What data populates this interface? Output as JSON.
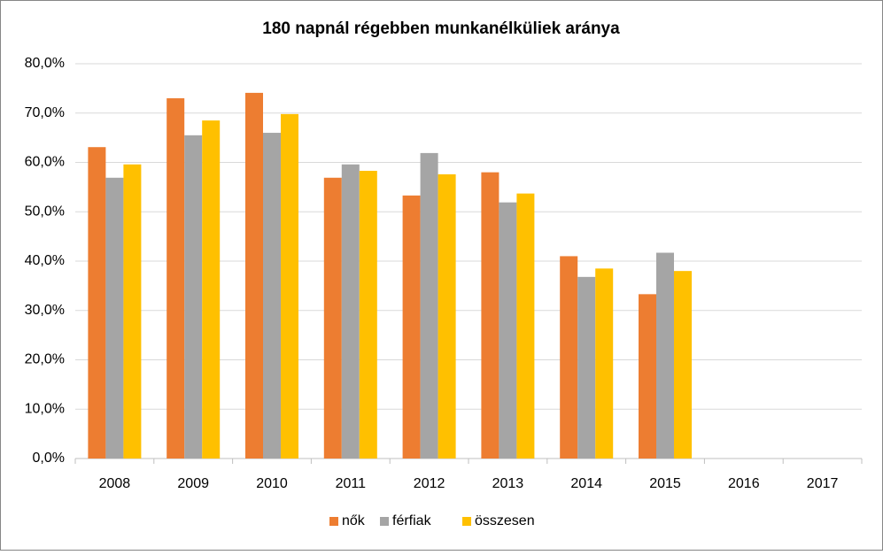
{
  "chart_data": {
    "type": "bar",
    "title": "180 napnál régebben munkanélküliek aránya",
    "categories": [
      "2008",
      "2009",
      "2010",
      "2011",
      "2012",
      "2013",
      "2014",
      "2015",
      "2016",
      "2017"
    ],
    "series": [
      {
        "name": "nők",
        "color": "#ED7D31",
        "values": [
          63.1,
          73.0,
          74.1,
          56.9,
          53.3,
          58.0,
          41.0,
          33.3,
          null,
          null
        ]
      },
      {
        "name": "férfiak",
        "color": "#A5A5A5",
        "values": [
          56.9,
          65.5,
          66.0,
          59.6,
          61.9,
          51.9,
          36.8,
          41.7,
          null,
          null
        ]
      },
      {
        "name": "összesen",
        "color": "#FFC000",
        "values": [
          59.6,
          68.5,
          69.8,
          58.3,
          57.6,
          53.7,
          38.5,
          38.0,
          null,
          null
        ]
      }
    ],
    "ylim": [
      0,
      80
    ],
    "yticks": [
      {
        "value": 0,
        "label": "0,0%"
      },
      {
        "value": 10,
        "label": "10,0%"
      },
      {
        "value": 20,
        "label": "20,0%"
      },
      {
        "value": 30,
        "label": "30,0%"
      },
      {
        "value": 40,
        "label": "40,0%"
      },
      {
        "value": 50,
        "label": "50,0%"
      },
      {
        "value": 60,
        "label": "60,0%"
      },
      {
        "value": 70,
        "label": "70,0%"
      },
      {
        "value": 80,
        "label": "80,0%"
      }
    ],
    "grid": true,
    "legend": "bottom"
  }
}
